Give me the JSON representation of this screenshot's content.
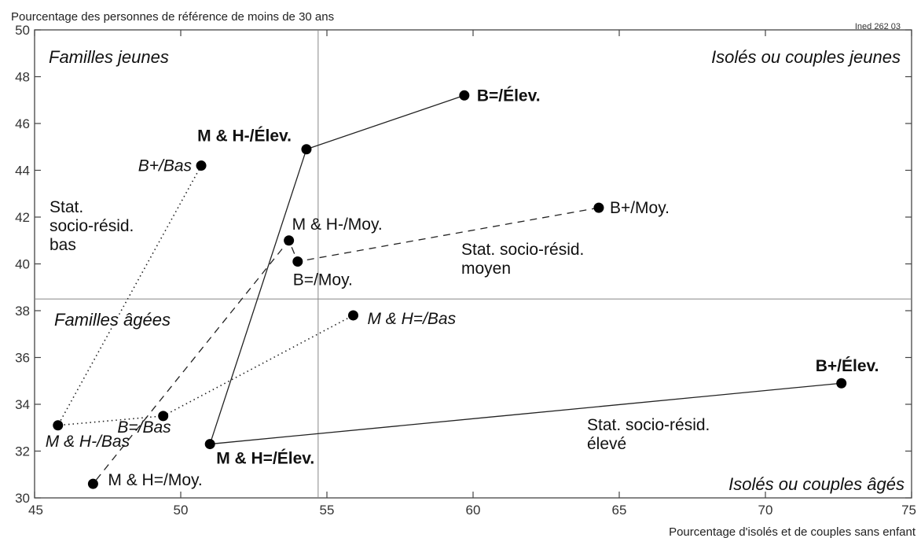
{
  "chart_data": {
    "type": "scatter",
    "title": "Pourcentage des personnes de référence de moins de 30 ans",
    "source": "Ined 262 03",
    "xlabel": "Pourcentage d'isolés et de couples sans enfant",
    "ylabel": "",
    "xlim": [
      45,
      75
    ],
    "ylim": [
      30,
      50
    ],
    "x_ticks": [
      "45",
      "50",
      "55",
      "60",
      "65",
      "70",
      "75"
    ],
    "y_ticks": [
      "30",
      "32",
      "34",
      "36",
      "38",
      "40",
      "42",
      "44",
      "46",
      "48",
      "50"
    ],
    "reference_lines": {
      "x": 54.7,
      "y": 38.5
    },
    "grid": false,
    "quadrant_labels": [
      {
        "id": "tl",
        "text": "Familles jeunes"
      },
      {
        "id": "tr",
        "text": "Isolés ou couples jeunes"
      },
      {
        "id": "ml",
        "text": "Familles âgées"
      },
      {
        "id": "br",
        "text": "Isolés ou couples âgés"
      }
    ],
    "group_labels": [
      {
        "id": "bas",
        "lines": [
          "Stat.",
          "socio-résid.",
          "bas"
        ]
      },
      {
        "id": "moyen",
        "lines": [
          "Stat. socio-résid.",
          "moyen"
        ]
      },
      {
        "id": "eleve",
        "lines": [
          "Stat. socio-résid.",
          "élevé"
        ]
      }
    ],
    "points": [
      {
        "id": "beq-elev",
        "label": "B=/Élev.",
        "x": 59.7,
        "y": 47.2,
        "style": "bold"
      },
      {
        "id": "mh-minus-elev",
        "label": "M & H-/Élev.",
        "x": 54.3,
        "y": 44.9,
        "style": "bold"
      },
      {
        "id": "bplus-bas",
        "label": "B+/Bas",
        "x": 50.7,
        "y": 44.2,
        "style": "italic"
      },
      {
        "id": "bplus-moy",
        "label": "B+/Moy.",
        "x": 64.3,
        "y": 42.4,
        "style": "normal"
      },
      {
        "id": "mh-minus-moy",
        "label": "M & H-/Moy.",
        "x": 53.7,
        "y": 41.0,
        "style": "normal"
      },
      {
        "id": "beq-moy",
        "label": "B=/Moy.",
        "x": 54.0,
        "y": 40.1,
        "style": "normal"
      },
      {
        "id": "mheq-bas",
        "label": "M & H=/Bas",
        "x": 55.9,
        "y": 37.8,
        "style": "italic"
      },
      {
        "id": "bplus-elev",
        "label": "B+/Élev.",
        "x": 72.6,
        "y": 34.9,
        "style": "bold"
      },
      {
        "id": "beq-bas",
        "label": "B=/Bas",
        "x": 49.4,
        "y": 33.5,
        "style": "italic"
      },
      {
        "id": "mh-minus-bas",
        "label": "M & H-/Bas",
        "x": 45.8,
        "y": 33.1,
        "style": "italic"
      },
      {
        "id": "mheq-elev",
        "label": "M & H=/Élev.",
        "x": 51.0,
        "y": 32.3,
        "style": "bold"
      },
      {
        "id": "mheq-moy",
        "label": "M & H=/Moy.",
        "x": 47.0,
        "y": 30.6,
        "style": "normal"
      }
    ],
    "series": [
      {
        "style": "solid",
        "points": [
          "beq-elev",
          "mh-minus-elev",
          "mheq-elev",
          "bplus-elev"
        ]
      },
      {
        "style": "dashed",
        "points": [
          "bplus-moy",
          "beq-moy",
          "mh-minus-moy",
          "mheq-moy"
        ]
      },
      {
        "style": "dotted",
        "points": [
          "bplus-bas",
          "mh-minus-bas",
          "beq-bas",
          "mheq-bas"
        ]
      }
    ]
  }
}
